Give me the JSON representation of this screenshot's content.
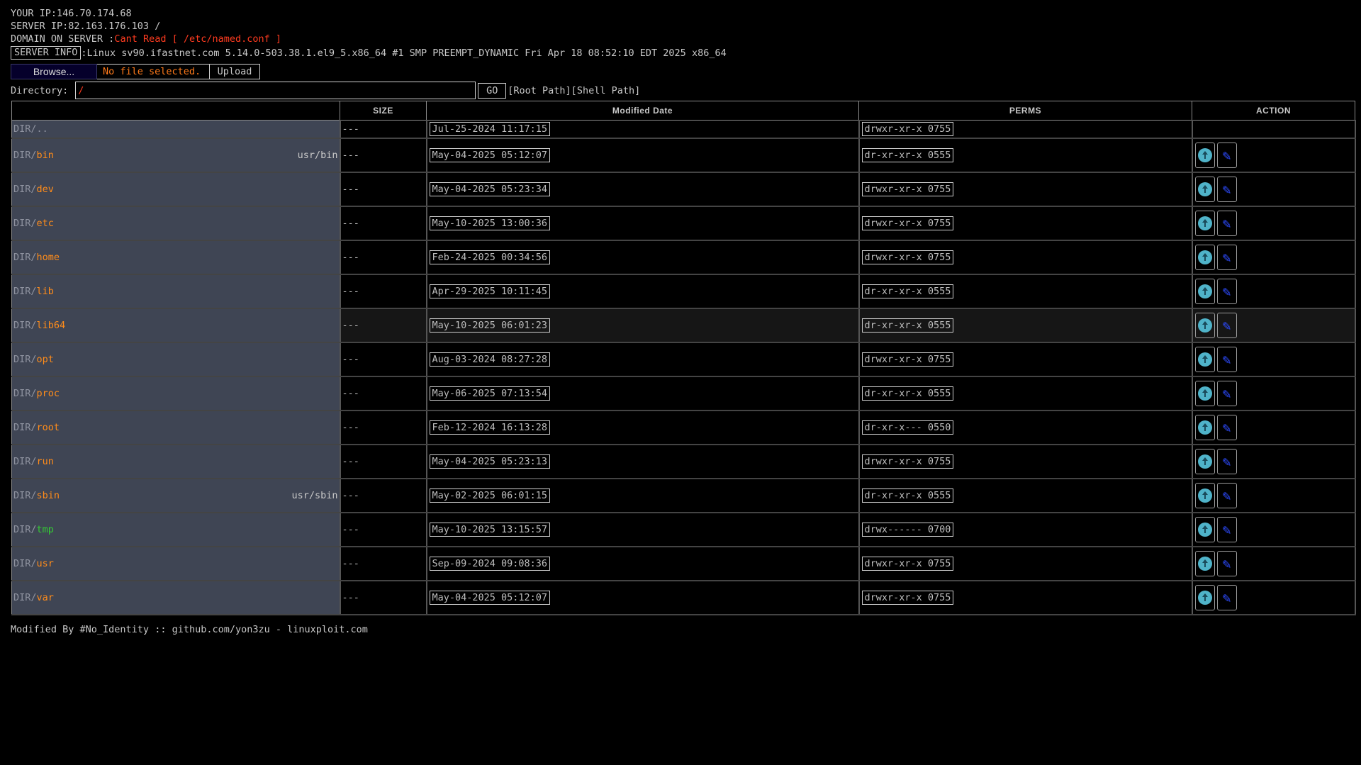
{
  "header": {
    "your_ip": "YOUR IP:146.70.174.68",
    "server_ip": "SERVER IP:82.163.176.103 /",
    "domain_label": "DOMAIN ON SERVER :",
    "domain_value": "Cant Read [ /etc/named.conf ]",
    "server_info_label": "SERVER INFO",
    "server_info_value": ":Linux sv90.ifastnet.com 5.14.0-503.38.1.el9_5.x86_64 #1 SMP PREEMPT_DYNAMIC Fri Apr 18 08:52:10 EDT 2025 x86_64"
  },
  "upload": {
    "browse_label": "Browse...",
    "file_status": "No file selected.",
    "upload_label": "Upload"
  },
  "directory": {
    "label": "Directory:",
    "value": "/",
    "go_label": "GO",
    "paths_label": "[Root Path][Shell Path]"
  },
  "table": {
    "headers": {
      "name": "",
      "size": "SIZE",
      "modified": "Modified Date",
      "perms": "PERMS",
      "action": "ACTION"
    },
    "up_row": {
      "prefix": "DIR/",
      "name": "..",
      "size": "---",
      "modified": "Jul-25-2024 11:17:15",
      "perms": "drwxr-xr-x 0755"
    },
    "rows": [
      {
        "prefix": "DIR/",
        "name": "bin",
        "link": "usr/bin",
        "size": "---",
        "modified": "May-04-2025 05:12:07",
        "perms": "dr-xr-xr-x 0555"
      },
      {
        "prefix": "DIR/",
        "name": "dev",
        "link": "",
        "size": "---",
        "modified": "May-04-2025 05:23:34",
        "perms": "drwxr-xr-x 0755"
      },
      {
        "prefix": "DIR/",
        "name": "etc",
        "link": "",
        "size": "---",
        "modified": "May-10-2025 13:00:36",
        "perms": "drwxr-xr-x 0755"
      },
      {
        "prefix": "DIR/",
        "name": "home",
        "link": "",
        "size": "---",
        "modified": "Feb-24-2025 00:34:56",
        "perms": "drwxr-xr-x 0755"
      },
      {
        "prefix": "DIR/",
        "name": "lib",
        "link": "",
        "size": "---",
        "modified": "Apr-29-2025 10:11:45",
        "perms": "dr-xr-xr-x 0555"
      },
      {
        "prefix": "DIR/",
        "name": "lib64",
        "link": "",
        "size": "---",
        "modified": "May-10-2025 06:01:23",
        "perms": "dr-xr-xr-x 0555"
      },
      {
        "prefix": "DIR/",
        "name": "opt",
        "link": "",
        "size": "---",
        "modified": "Aug-03-2024 08:27:28",
        "perms": "drwxr-xr-x 0755"
      },
      {
        "prefix": "DIR/",
        "name": "proc",
        "link": "",
        "size": "---",
        "modified": "May-06-2025 07:13:54",
        "perms": "dr-xr-xr-x 0555"
      },
      {
        "prefix": "DIR/",
        "name": "root",
        "link": "",
        "size": "---",
        "modified": "Feb-12-2024 16:13:28",
        "perms": "dr-xr-x--- 0550"
      },
      {
        "prefix": "DIR/",
        "name": "run",
        "link": "",
        "size": "---",
        "modified": "May-04-2025 05:23:13",
        "perms": "drwxr-xr-x 0755"
      },
      {
        "prefix": "DIR/",
        "name": "sbin",
        "link": "usr/sbin",
        "size": "---",
        "modified": "May-02-2025 06:01:15",
        "perms": "dr-xr-xr-x 0555"
      },
      {
        "prefix": "DIR/",
        "name": "tmp",
        "link": "",
        "size": "---",
        "modified": "May-10-2025 13:15:57",
        "perms": "drwx------ 0700"
      },
      {
        "prefix": "DIR/",
        "name": "usr",
        "link": "",
        "size": "---",
        "modified": "Sep-09-2024 09:08:36",
        "perms": "drwxr-xr-x 0755"
      },
      {
        "prefix": "DIR/",
        "name": "var",
        "link": "",
        "size": "---",
        "modified": "May-04-2025 05:12:07",
        "perms": "drwxr-xr-x 0755"
      }
    ],
    "actions": [
      "download-icon",
      "edit-pencil-icon"
    ]
  },
  "footer": {
    "text": "Modified By #No_Identity :: github.com/yon3zu - linuxploit.com"
  },
  "colors": {
    "background": "#000000",
    "dir_name": "#ff8c1a",
    "tmp_name": "#33cc33",
    "alert": "#ff3b1f",
    "name_cell_bg": "#3f4554"
  }
}
